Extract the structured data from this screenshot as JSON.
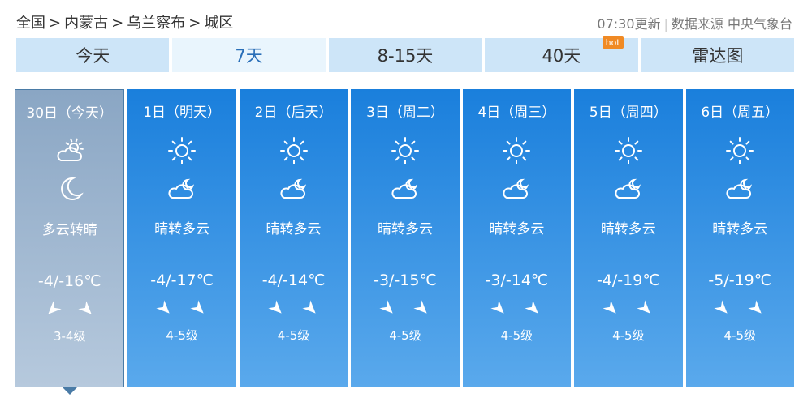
{
  "breadcrumb": [
    "全国",
    "内蒙古",
    "乌兰察布",
    "城区"
  ],
  "breadcrumb_sep": ">",
  "update_time": "07:30更新",
  "source": "数据来源 中央气象台",
  "tabs": [
    {
      "label": "今天"
    },
    {
      "label": "7天",
      "active": true
    },
    {
      "label": "8-15天"
    },
    {
      "label": "40天",
      "badge": "hot"
    },
    {
      "label": "雷达图"
    }
  ],
  "days": [
    {
      "date": "30日（今天）",
      "day_icon": "partly-cloudy-icon",
      "night_icon": "moon-icon",
      "desc": "多云转晴",
      "temp": "-4/-16℃",
      "wind_dirs": [
        45,
        315
      ],
      "wind_level": "3-4级",
      "selected": true
    },
    {
      "date": "1日（明天）",
      "day_icon": "sun-icon",
      "night_icon": "cloudy-night-icon",
      "desc": "晴转多云",
      "temp": "-4/-17℃",
      "wind_dirs": [
        315,
        315
      ],
      "wind_level": "4-5级"
    },
    {
      "date": "2日（后天）",
      "day_icon": "sun-icon",
      "night_icon": "cloudy-night-icon",
      "desc": "晴转多云",
      "temp": "-4/-14℃",
      "wind_dirs": [
        315,
        315
      ],
      "wind_level": "4-5级"
    },
    {
      "date": "3日（周二）",
      "day_icon": "sun-icon",
      "night_icon": "cloudy-night-icon",
      "desc": "晴转多云",
      "temp": "-3/-15℃",
      "wind_dirs": [
        315,
        315
      ],
      "wind_level": "4-5级"
    },
    {
      "date": "4日（周三）",
      "day_icon": "sun-icon",
      "night_icon": "cloudy-night-icon",
      "desc": "晴转多云",
      "temp": "-3/-14℃",
      "wind_dirs": [
        315,
        315
      ],
      "wind_level": "4-5级"
    },
    {
      "date": "5日（周四）",
      "day_icon": "sun-icon",
      "night_icon": "cloudy-night-icon",
      "desc": "晴转多云",
      "temp": "-4/-19℃",
      "wind_dirs": [
        315,
        315
      ],
      "wind_level": "4-5级"
    },
    {
      "date": "6日（周五）",
      "day_icon": "sun-icon",
      "night_icon": "cloudy-night-icon",
      "desc": "晴转多云",
      "temp": "-5/-19℃",
      "wind_dirs": [
        315,
        315
      ],
      "wind_level": "4-5级"
    }
  ]
}
